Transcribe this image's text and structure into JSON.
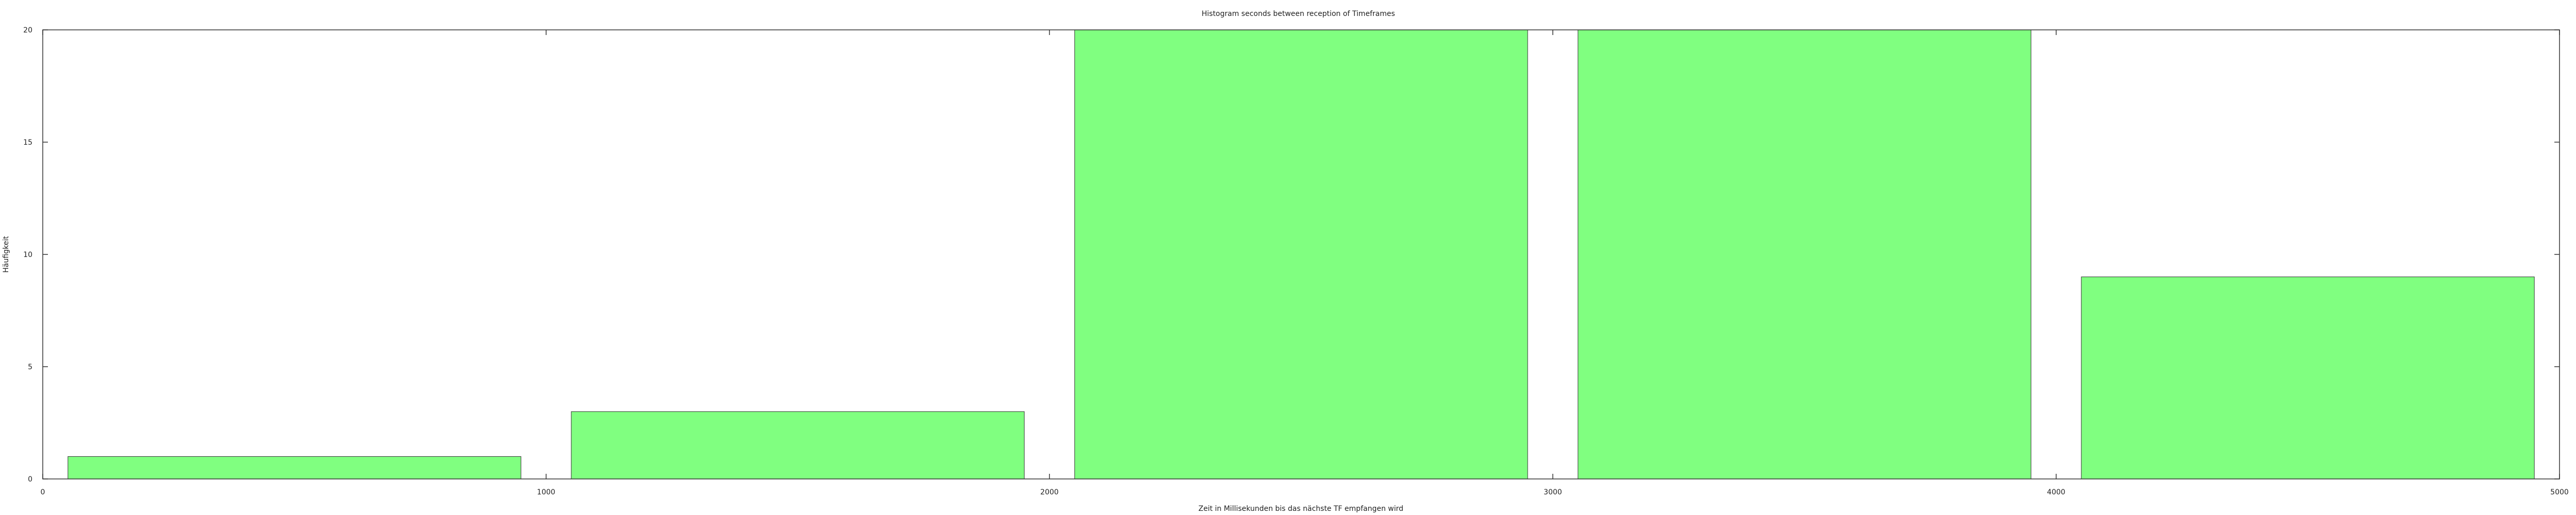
{
  "chart_data": {
    "type": "bar",
    "title": "Histogram seconds between reception of Timeframes",
    "xlabel": "Zeit in Millisekunden bis das nächste TF empfangen wird",
    "ylabel": "Häufigkeit",
    "xlim": [
      0,
      5000
    ],
    "ylim": [
      0,
      20
    ],
    "xticks": [
      0,
      1000,
      2000,
      3000,
      4000,
      5000
    ],
    "yticks": [
      0,
      5,
      10,
      15,
      20
    ],
    "grid": false,
    "bars": [
      {
        "x_start": 50,
        "x_end": 950,
        "value": 1
      },
      {
        "x_start": 1050,
        "x_end": 1950,
        "value": 3
      },
      {
        "x_start": 2050,
        "x_end": 2950,
        "value": 20
      },
      {
        "x_start": 3050,
        "x_end": 3950,
        "value": 20
      },
      {
        "x_start": 4050,
        "x_end": 4950,
        "value": 9
      }
    ],
    "colors": {
      "bar_fill": "#80ff80",
      "bar_stroke": "#333333",
      "axis": "#333333"
    }
  }
}
